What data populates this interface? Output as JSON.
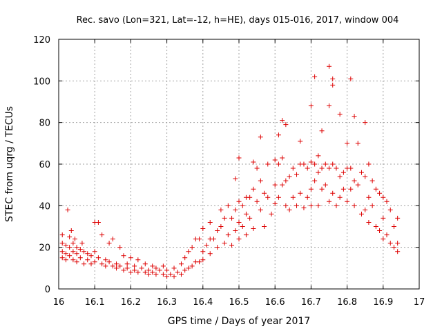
{
  "chart_data": {
    "type": "scatter",
    "title": "Rec. savo (Lon=321, Lat=-12, h=HE), days 015-016, 2017, window 004",
    "xlabel": "GPS time / Days of year 2017",
    "ylabel": "STEC from uqrg / TECUs",
    "xlim": [
      16,
      17
    ],
    "ylim": [
      0,
      120
    ],
    "x_ticks": [
      "16",
      "16.1",
      "16.2",
      "16.3",
      "16.4",
      "16.5",
      "16.6",
      "16.7",
      "16.8",
      "16.9",
      "17"
    ],
    "y_ticks": [
      "0",
      "20",
      "40",
      "60",
      "80",
      "100",
      "120"
    ],
    "grid": true,
    "marker": "+",
    "color": "#dd0000",
    "series": [
      {
        "name": "",
        "points": [
          [
            16.01,
            26
          ],
          [
            16.01,
            22
          ],
          [
            16.01,
            18
          ],
          [
            16.01,
            15
          ],
          [
            16.02,
            21
          ],
          [
            16.02,
            17
          ],
          [
            16.02,
            14
          ],
          [
            16.025,
            38
          ],
          [
            16.03,
            25
          ],
          [
            16.03,
            20
          ],
          [
            16.03,
            16
          ],
          [
            16.035,
            28
          ],
          [
            16.04,
            22
          ],
          [
            16.04,
            18
          ],
          [
            16.04,
            14
          ],
          [
            16.045,
            24
          ],
          [
            16.05,
            20
          ],
          [
            16.05,
            17
          ],
          [
            16.05,
            13
          ],
          [
            16.06,
            19
          ],
          [
            16.06,
            15
          ],
          [
            16.065,
            22
          ],
          [
            16.07,
            18
          ],
          [
            16.07,
            12
          ],
          [
            16.08,
            17
          ],
          [
            16.08,
            14
          ],
          [
            16.09,
            16
          ],
          [
            16.09,
            12
          ],
          [
            16.1,
            32
          ],
          [
            16.1,
            18
          ],
          [
            16.1,
            13
          ],
          [
            16.11,
            32
          ],
          [
            16.11,
            15
          ],
          [
            16.12,
            26
          ],
          [
            16.12,
            12
          ],
          [
            16.13,
            14
          ],
          [
            16.13,
            11
          ],
          [
            16.14,
            22
          ],
          [
            16.14,
            13
          ],
          [
            16.15,
            24
          ],
          [
            16.15,
            11
          ],
          [
            16.16,
            12
          ],
          [
            16.16,
            10
          ],
          [
            16.17,
            20
          ],
          [
            16.17,
            11
          ],
          [
            16.18,
            16
          ],
          [
            16.18,
            9
          ],
          [
            16.19,
            12
          ],
          [
            16.19,
            10
          ],
          [
            16.2,
            15
          ],
          [
            16.2,
            8
          ],
          [
            16.21,
            11
          ],
          [
            16.21,
            9
          ],
          [
            16.22,
            14
          ],
          [
            16.22,
            8
          ],
          [
            16.23,
            10
          ],
          [
            16.24,
            12
          ],
          [
            16.24,
            8
          ],
          [
            16.25,
            9
          ],
          [
            16.25,
            7
          ],
          [
            16.26,
            11
          ],
          [
            16.26,
            8
          ],
          [
            16.27,
            10
          ],
          [
            16.27,
            7
          ],
          [
            16.28,
            9
          ],
          [
            16.29,
            11
          ],
          [
            16.29,
            7
          ],
          [
            16.3,
            9
          ],
          [
            16.3,
            6
          ],
          [
            16.31,
            7
          ],
          [
            16.32,
            10
          ],
          [
            16.32,
            6
          ],
          [
            16.33,
            8
          ],
          [
            16.34,
            12
          ],
          [
            16.34,
            7
          ],
          [
            16.35,
            15
          ],
          [
            16.35,
            9
          ],
          [
            16.36,
            18
          ],
          [
            16.36,
            10
          ],
          [
            16.37,
            20
          ],
          [
            16.37,
            11
          ],
          [
            16.38,
            24
          ],
          [
            16.38,
            13
          ],
          [
            16.39,
            24
          ],
          [
            16.39,
            13
          ],
          [
            16.4,
            29
          ],
          [
            16.4,
            18
          ],
          [
            16.4,
            14
          ],
          [
            16.41,
            21
          ],
          [
            16.42,
            32
          ],
          [
            16.42,
            24
          ],
          [
            16.42,
            17
          ],
          [
            16.43,
            24
          ],
          [
            16.44,
            28
          ],
          [
            16.44,
            20
          ],
          [
            16.45,
            38
          ],
          [
            16.45,
            30
          ],
          [
            16.46,
            34
          ],
          [
            16.46,
            22
          ],
          [
            16.47,
            40
          ],
          [
            16.47,
            26
          ],
          [
            16.48,
            34
          ],
          [
            16.48,
            21
          ],
          [
            16.49,
            53
          ],
          [
            16.49,
            38
          ],
          [
            16.49,
            28
          ],
          [
            16.5,
            63
          ],
          [
            16.5,
            42
          ],
          [
            16.5,
            32
          ],
          [
            16.5,
            24
          ],
          [
            16.51,
            40
          ],
          [
            16.51,
            30
          ],
          [
            16.52,
            44
          ],
          [
            16.52,
            36
          ],
          [
            16.52,
            26
          ],
          [
            16.53,
            44
          ],
          [
            16.53,
            34
          ],
          [
            16.54,
            61
          ],
          [
            16.54,
            48
          ],
          [
            16.54,
            29
          ],
          [
            16.55,
            58
          ],
          [
            16.55,
            42
          ],
          [
            16.56,
            73
          ],
          [
            16.56,
            52
          ],
          [
            16.56,
            38
          ],
          [
            16.57,
            46
          ],
          [
            16.57,
            30
          ],
          [
            16.58,
            60
          ],
          [
            16.58,
            44
          ],
          [
            16.59,
            36
          ],
          [
            16.6,
            62
          ],
          [
            16.6,
            50
          ],
          [
            16.6,
            41
          ],
          [
            16.61,
            74
          ],
          [
            16.61,
            60
          ],
          [
            16.61,
            44
          ],
          [
            16.62,
            81
          ],
          [
            16.62,
            63
          ],
          [
            16.62,
            50
          ],
          [
            16.63,
            79
          ],
          [
            16.63,
            52
          ],
          [
            16.63,
            40
          ],
          [
            16.64,
            54
          ],
          [
            16.64,
            38
          ],
          [
            16.65,
            58
          ],
          [
            16.65,
            44
          ],
          [
            16.66,
            55
          ],
          [
            16.66,
            40
          ],
          [
            16.67,
            71
          ],
          [
            16.67,
            60
          ],
          [
            16.67,
            46
          ],
          [
            16.68,
            60
          ],
          [
            16.68,
            39
          ],
          [
            16.69,
            58
          ],
          [
            16.69,
            44
          ],
          [
            16.7,
            88
          ],
          [
            16.7,
            61
          ],
          [
            16.7,
            48
          ],
          [
            16.7,
            40
          ],
          [
            16.71,
            102
          ],
          [
            16.71,
            60
          ],
          [
            16.71,
            52
          ],
          [
            16.72,
            64
          ],
          [
            16.72,
            56
          ],
          [
            16.72,
            40
          ],
          [
            16.73,
            76
          ],
          [
            16.73,
            58
          ],
          [
            16.73,
            48
          ],
          [
            16.74,
            60
          ],
          [
            16.74,
            50
          ],
          [
            16.75,
            107
          ],
          [
            16.75,
            88
          ],
          [
            16.75,
            58
          ],
          [
            16.75,
            42
          ],
          [
            16.76,
            101
          ],
          [
            16.76,
            98
          ],
          [
            16.76,
            60
          ],
          [
            16.76,
            46
          ],
          [
            16.77,
            58
          ],
          [
            16.77,
            40
          ],
          [
            16.78,
            84
          ],
          [
            16.78,
            54
          ],
          [
            16.78,
            44
          ],
          [
            16.79,
            56
          ],
          [
            16.79,
            48
          ],
          [
            16.8,
            70
          ],
          [
            16.8,
            58
          ],
          [
            16.8,
            42
          ],
          [
            16.81,
            101
          ],
          [
            16.81,
            58
          ],
          [
            16.81,
            48
          ],
          [
            16.82,
            83
          ],
          [
            16.82,
            52
          ],
          [
            16.82,
            40
          ],
          [
            16.83,
            70
          ],
          [
            16.83,
            50
          ],
          [
            16.84,
            56
          ],
          [
            16.84,
            36
          ],
          [
            16.85,
            80
          ],
          [
            16.85,
            54
          ],
          [
            16.85,
            38
          ],
          [
            16.86,
            60
          ],
          [
            16.86,
            44
          ],
          [
            16.86,
            32
          ],
          [
            16.87,
            52
          ],
          [
            16.87,
            40
          ],
          [
            16.88,
            48
          ],
          [
            16.88,
            30
          ],
          [
            16.89,
            46
          ],
          [
            16.89,
            28
          ],
          [
            16.9,
            44
          ],
          [
            16.9,
            34
          ],
          [
            16.9,
            24
          ],
          [
            16.91,
            42
          ],
          [
            16.91,
            26
          ],
          [
            16.92,
            38
          ],
          [
            16.92,
            22
          ],
          [
            16.93,
            30
          ],
          [
            16.93,
            20
          ],
          [
            16.94,
            34
          ],
          [
            16.94,
            22
          ],
          [
            16.94,
            18
          ]
        ]
      }
    ]
  }
}
